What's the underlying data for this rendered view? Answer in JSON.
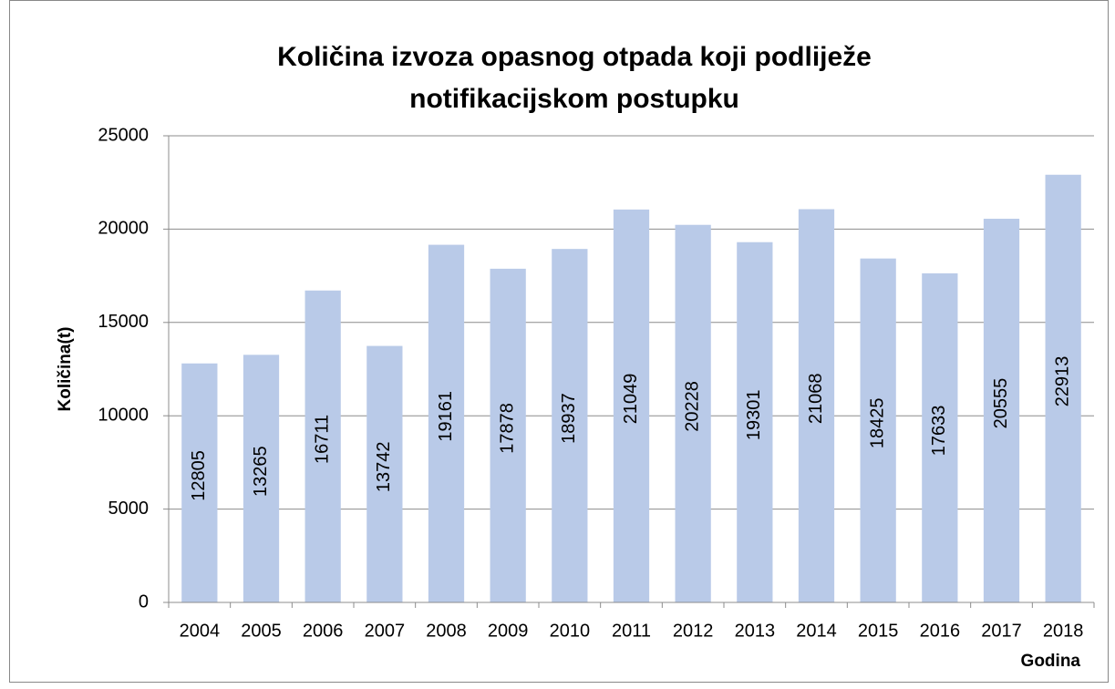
{
  "chart_data": {
    "type": "bar",
    "title": "Količina izvoza opasnog otpada koji podliježe notifikacijskom postupku",
    "x_label": "Godina",
    "y_label": "Količina(t)",
    "categories": [
      "2004",
      "2005",
      "2006",
      "2007",
      "2008",
      "2009",
      "2010",
      "2011",
      "2012",
      "2013",
      "2014",
      "2015",
      "2016",
      "2017",
      "2018"
    ],
    "values": [
      12805,
      13265,
      16711,
      13742,
      19161,
      17878,
      18937,
      21049,
      20228,
      19301,
      21068,
      18425,
      17633,
      20555,
      22913
    ],
    "color": "#b9cae8",
    "ylim": [
      0,
      25000
    ],
    "yticks": [
      0,
      5000,
      10000,
      15000,
      20000,
      25000
    ],
    "grid": true
  }
}
